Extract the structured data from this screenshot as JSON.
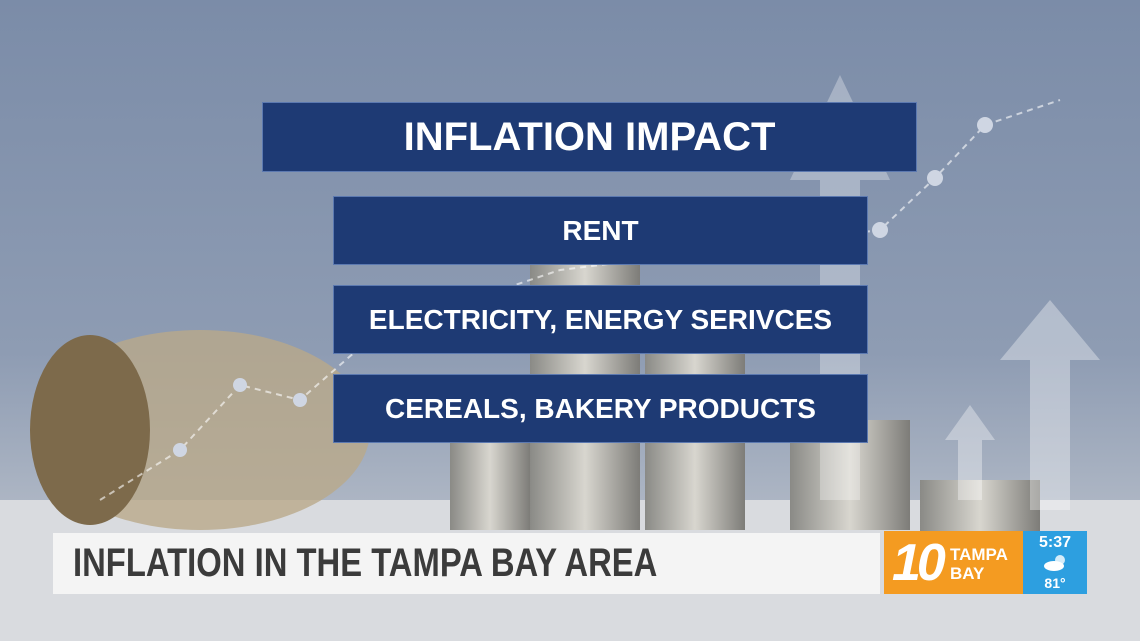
{
  "panel": {
    "title": "INFLATION IMPACT",
    "items": [
      "RENT",
      "ELECTRICITY, ENERGY SERIVCES",
      "CEREALS, BAKERY PRODUCTS"
    ]
  },
  "lower_third": {
    "headline": "INFLATION IN THE TAMPA BAY AREA"
  },
  "logo": {
    "number": "10",
    "line1": "TAMPA",
    "line2": "BAY"
  },
  "weather": {
    "time": "5:37",
    "temperature": "81°"
  }
}
